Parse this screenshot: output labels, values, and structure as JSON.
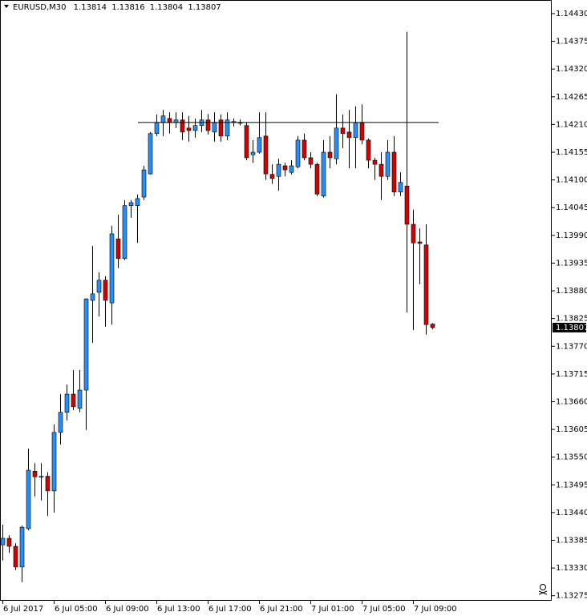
{
  "chart_data": {
    "type": "candlestick",
    "symbol": "EURUSD,M30",
    "categories": [
      "6 Jul 2017",
      null,
      null,
      null,
      null,
      null,
      null,
      null,
      "6 Jul 05:00",
      null,
      null,
      null,
      null,
      null,
      null,
      null,
      "6 Jul 09:00",
      null,
      null,
      null,
      null,
      null,
      null,
      null,
      "6 Jul 13:00",
      null,
      null,
      null,
      null,
      null,
      null,
      null,
      "6 Jul 17:00",
      null,
      null,
      null,
      null,
      null,
      null,
      null,
      "6 Jul 21:00",
      null,
      null,
      null,
      null,
      null,
      null,
      null,
      "7 Jul 01:00",
      null,
      null,
      null,
      null,
      null,
      null,
      null,
      "7 Jul 05:00",
      null,
      null,
      null,
      null,
      null,
      null,
      null,
      "7 Jul 09:00",
      null,
      null,
      null
    ],
    "open": [
      1.13376,
      1.13389,
      1.13373,
      1.13332,
      1.13408,
      1.13522,
      1.1351,
      1.13512,
      1.13483,
      1.13599,
      1.13639,
      1.13675,
      1.13647,
      1.13683,
      1.13861,
      1.13877,
      1.13901,
      1.13856,
      1.13983,
      1.13944,
      1.14049,
      1.14049,
      1.14066,
      1.14112,
      1.14192,
      1.14214,
      1.14222,
      1.14214,
      1.14219,
      1.14203,
      1.14198,
      1.14208,
      1.14219,
      1.14195,
      1.14219,
      1.14187,
      1.14214,
      1.14214,
      1.14208,
      1.1415,
      1.14155,
      1.14187,
      1.14111,
      1.14107,
      1.14128,
      1.14115,
      1.14126,
      1.14179,
      1.14144,
      1.14131,
      1.14068,
      1.14155,
      1.14142,
      1.14203,
      1.14195,
      1.14184,
      1.14214,
      1.14179,
      1.14139,
      1.14131,
      1.14107,
      1.14155,
      1.14076,
      1.14088,
      1.14012,
      1.13977,
      1.13971,
      1.13814
    ],
    "high": [
      1.13416,
      1.13395,
      1.13379,
      1.13414,
      1.13567,
      1.13538,
      1.13538,
      1.1352,
      1.13615,
      1.13675,
      1.13694,
      1.13723,
      1.13723,
      1.13865,
      1.13969,
      1.13917,
      1.13909,
      1.14009,
      1.14031,
      1.1406,
      1.1406,
      1.14071,
      1.14128,
      1.14195,
      1.1423,
      1.14239,
      1.14234,
      1.14234,
      1.14234,
      1.14227,
      1.14222,
      1.14239,
      1.14231,
      1.14234,
      1.1423,
      1.14234,
      1.14222,
      1.1422,
      1.14214,
      1.14179,
      1.14234,
      1.14234,
      1.14131,
      1.14142,
      1.14134,
      1.14139,
      1.14187,
      1.14192,
      1.14155,
      1.14134,
      1.14179,
      1.14187,
      1.1427,
      1.1423,
      1.14239,
      1.14246,
      1.1425,
      1.14182,
      1.14144,
      1.14155,
      1.14179,
      1.14187,
      1.14115,
      1.14394,
      1.14041,
      1.14004,
      1.14012,
      1.13816
    ],
    "low": [
      1.13345,
      1.1336,
      1.13326,
      1.13302,
      1.13405,
      1.13472,
      1.13464,
      1.13433,
      1.1344,
      1.13575,
      1.13623,
      1.13643,
      1.13639,
      1.13604,
      1.13777,
      1.13829,
      1.13809,
      1.13813,
      1.13925,
      1.13941,
      1.14025,
      1.13975,
      1.1406,
      1.14111,
      1.14187,
      1.14187,
      1.14192,
      1.14203,
      1.14179,
      1.14176,
      1.14184,
      1.14195,
      1.1419,
      1.14176,
      1.14176,
      1.14179,
      1.14206,
      1.14208,
      1.14139,
      1.14134,
      1.14152,
      1.141,
      1.14092,
      1.14079,
      1.14107,
      1.14111,
      1.14123,
      1.14139,
      1.14123,
      1.14068,
      1.14065,
      1.14123,
      1.14131,
      1.14163,
      1.14123,
      1.14123,
      1.14171,
      1.14123,
      1.141,
      1.1406,
      1.141,
      1.14068,
      1.14068,
      1.13837,
      1.13802,
      1.13893,
      1.13793,
      1.13804
    ],
    "close": [
      1.13389,
      1.13373,
      1.13332,
      1.13411,
      1.13524,
      1.13511,
      1.13512,
      1.13483,
      1.13599,
      1.13639,
      1.13675,
      1.1365,
      1.13683,
      1.13864,
      1.13874,
      1.13901,
      1.13861,
      1.13993,
      1.13944,
      1.14049,
      1.14055,
      1.14063,
      1.1412,
      1.14192,
      1.14214,
      1.14227,
      1.14214,
      1.14219,
      1.14195,
      1.14198,
      1.14208,
      1.14219,
      1.14198,
      1.14214,
      1.14187,
      1.14219,
      1.14216,
      1.14214,
      1.14144,
      1.14155,
      1.14184,
      1.14112,
      1.14103,
      1.14131,
      1.1412,
      1.14128,
      1.14179,
      1.14144,
      1.14131,
      1.14072,
      1.14155,
      1.14144,
      1.14203,
      1.14192,
      1.14184,
      1.14214,
      1.14179,
      1.14139,
      1.14131,
      1.14107,
      1.14155,
      1.14076,
      1.14095,
      1.14012,
      1.13975,
      1.13974,
      1.13813,
      1.13807
    ],
    "up_color": "#1e90ff",
    "down_color": "#d40000",
    "horizontal_line": 1.14214,
    "ylim": [
      1.13265,
      1.14457
    ],
    "yticks": [
      {
        "value": 1.1443,
        "label": "1.14430"
      },
      {
        "value": 1.14375,
        "label": "1.14375"
      },
      {
        "value": 1.1432,
        "label": "1.14320"
      },
      {
        "value": 1.14265,
        "label": "1.14265"
      },
      {
        "value": 1.1421,
        "label": "1.14210"
      },
      {
        "value": 1.14155,
        "label": "1.14155"
      },
      {
        "value": 1.141,
        "label": "1.14100"
      },
      {
        "value": 1.14045,
        "label": "1.14045"
      },
      {
        "value": 1.1399,
        "label": "1.13990"
      },
      {
        "value": 1.13935,
        "label": "1.13935"
      },
      {
        "value": 1.1388,
        "label": "1.13880"
      },
      {
        "value": 1.13825,
        "label": "1.13825"
      },
      {
        "value": 1.1377,
        "label": "1.13770"
      },
      {
        "value": 1.13715,
        "label": "1.13715"
      },
      {
        "value": 1.1366,
        "label": "1.13660"
      },
      {
        "value": 1.13605,
        "label": "1.13605"
      },
      {
        "value": 1.1355,
        "label": "1.13550"
      },
      {
        "value": 1.13495,
        "label": "1.13495"
      },
      {
        "value": 1.1344,
        "label": "1.13440"
      },
      {
        "value": 1.13385,
        "label": "1.13385"
      },
      {
        "value": 1.1333,
        "label": "1.13330"
      },
      {
        "value": 1.13275,
        "label": "1.13275"
      }
    ]
  }
}
